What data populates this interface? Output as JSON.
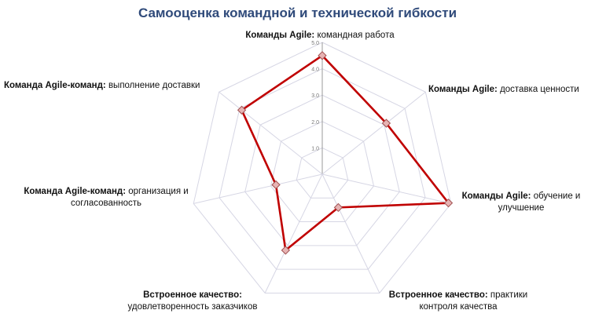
{
  "chart_data": {
    "type": "radar",
    "title": "Самооценка командной и технической гибкости",
    "axes": [
      {
        "bold": "Команды Agile:",
        "rest": "командная работа"
      },
      {
        "bold": "Команды Agile:",
        "rest": "доставка ценности"
      },
      {
        "bold": "Команды Agile:",
        "rest": "обучение и улучшение"
      },
      {
        "bold": "Встроенное качество:",
        "rest": "практики контроля качества"
      },
      {
        "bold": "Встроенное качество:",
        "rest": "удовлетворенность заказчиков"
      },
      {
        "bold": "Команда Agile-команд:",
        "rest": "организация и согласованность"
      },
      {
        "bold": "Команда Agile-команд:",
        "rest": "выполнение доставки"
      }
    ],
    "rlim": [
      1,
      5
    ],
    "ticks": [
      "1.0",
      "2.0",
      "3.0",
      "4.0",
      "5.0"
    ],
    "series": [
      {
        "values": [
          4.5,
          3.1,
          4.9,
          1.4,
          3.2,
          1.8,
          3.9
        ],
        "color": "#c00000"
      }
    ],
    "grid": true
  }
}
